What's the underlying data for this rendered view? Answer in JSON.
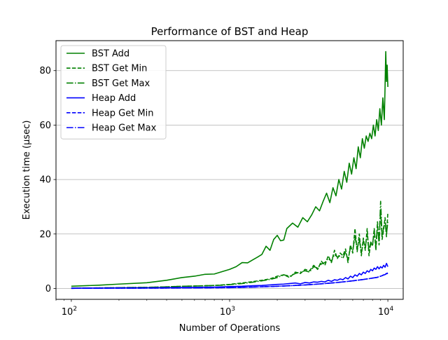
{
  "chart_data": {
    "type": "line",
    "title": "Performance of BST and Heap",
    "xlabel": "Number of Operations",
    "ylabel": "Execution time (μsec)",
    "xscale": "log",
    "xlim": [
      80,
      12500
    ],
    "ylim": [
      -4,
      91
    ],
    "xticks": [
      {
        "value": 100,
        "base": "10",
        "exp": "2"
      },
      {
        "value": 1000,
        "base": "10",
        "exp": "3"
      },
      {
        "value": 10000,
        "base": "10",
        "exp": "4"
      }
    ],
    "yticks": [
      {
        "value": 0,
        "label": "0"
      },
      {
        "value": 20,
        "label": "20"
      },
      {
        "value": 40,
        "label": "40"
      },
      {
        "value": 60,
        "label": "60"
      },
      {
        "value": 80,
        "label": "80"
      }
    ],
    "grid": "y-major",
    "legend_position": "upper-left",
    "series": [
      {
        "name": "BST Add",
        "color": "#008000",
        "dash": "solid",
        "x": [
          100,
          150,
          200,
          300,
          400,
          500,
          600,
          700,
          800,
          900,
          1000,
          1100,
          1200,
          1300,
          1400,
          1500,
          1600,
          1700,
          1800,
          1900,
          2000,
          2100,
          2200,
          2300,
          2500,
          2700,
          2900,
          3100,
          3300,
          3500,
          3700,
          3900,
          4100,
          4300,
          4500,
          4700,
          4900,
          5100,
          5300,
          5500,
          5700,
          5900,
          6100,
          6300,
          6500,
          6700,
          6900,
          7100,
          7300,
          7500,
          7700,
          7900,
          8100,
          8300,
          8500,
          8700,
          8900,
          9100,
          9300,
          9500,
          9600,
          9700,
          9800,
          9900,
          10000
        ],
        "y": [
          0.8,
          1.2,
          1.6,
          2.1,
          3.0,
          4.0,
          4.5,
          5.2,
          5.3,
          6.2,
          7.0,
          8.0,
          9.5,
          9.4,
          10.5,
          11.5,
          12.5,
          15.5,
          14.0,
          18.0,
          19.5,
          17.5,
          17.8,
          22.0,
          24.0,
          22.5,
          26.0,
          24.5,
          27.0,
          30.0,
          28.5,
          32.0,
          35.0,
          31.5,
          37.0,
          34.0,
          40.0,
          36.5,
          43.0,
          39.0,
          46.0,
          42.0,
          48.0,
          44.0,
          52.0,
          48.0,
          55.0,
          51.5,
          56.0,
          54.0,
          57.0,
          55.0,
          60.0,
          56.0,
          62.0,
          58.0,
          66.0,
          60.0,
          70.0,
          62.0,
          74.0,
          87.0,
          76.0,
          82.0,
          74.0
        ]
      },
      {
        "name": "BST Get Min",
        "color": "#008000",
        "dash": "dashed",
        "x": [
          100,
          150,
          200,
          300,
          400,
          500,
          600,
          700,
          800,
          900,
          1000,
          1200,
          1400,
          1600,
          1800,
          2000,
          2200,
          2400,
          2600,
          2800,
          3000,
          3200,
          3400,
          3600,
          3800,
          4000,
          4200,
          4400,
          4600,
          4800,
          5000,
          5200,
          5400,
          5600,
          5800,
          6000,
          6200,
          6400,
          6600,
          6800,
          7000,
          7200,
          7400,
          7600,
          7800,
          8000,
          8200,
          8400,
          8600,
          8800,
          9000,
          9200,
          9400,
          9600,
          9800,
          10000
        ],
        "y": [
          0.1,
          0.2,
          0.3,
          0.4,
          0.6,
          0.8,
          0.9,
          1.0,
          1.1,
          1.3,
          1.5,
          2.0,
          2.5,
          3.0,
          3.5,
          4.5,
          5.0,
          4.0,
          6.0,
          5.5,
          7.0,
          6.5,
          8.5,
          7.0,
          10.0,
          8.5,
          12.0,
          9.5,
          14.0,
          11.0,
          13.0,
          12.0,
          14.5,
          9.5,
          16.0,
          13.0,
          22.0,
          13.5,
          20.0,
          12.0,
          18.5,
          14.0,
          22.0,
          12.0,
          17.0,
          15.5,
          22.0,
          14.0,
          24.5,
          16.0,
          29.0,
          18.0,
          21.5,
          26.0,
          19.0,
          28.0
        ]
      },
      {
        "name": "BST Get Max",
        "color": "#008000",
        "dash": "dashdot",
        "x": [
          100,
          150,
          200,
          300,
          400,
          500,
          600,
          700,
          800,
          900,
          1000,
          1200,
          1400,
          1600,
          1800,
          2000,
          2200,
          2400,
          2600,
          2800,
          3000,
          3200,
          3400,
          3600,
          3800,
          4000,
          4200,
          4400,
          4600,
          4800,
          5000,
          5200,
          5400,
          5600,
          5800,
          6000,
          6200,
          6400,
          6600,
          6800,
          7000,
          7200,
          7400,
          7600,
          7800,
          8000,
          8200,
          8400,
          8600,
          8800,
          9000,
          9200,
          9400,
          9600,
          9800,
          10000
        ],
        "y": [
          0.1,
          0.2,
          0.3,
          0.4,
          0.6,
          0.8,
          0.9,
          1.0,
          1.1,
          1.2,
          1.4,
          1.8,
          2.3,
          2.8,
          3.3,
          4.0,
          5.0,
          4.5,
          5.5,
          6.0,
          6.5,
          6.0,
          8.0,
          7.5,
          9.0,
          9.5,
          11.0,
          10.0,
          12.5,
          11.5,
          12.0,
          11.0,
          13.5,
          10.5,
          15.0,
          14.0,
          19.0,
          14.5,
          18.0,
          13.0,
          17.5,
          15.0,
          20.0,
          14.0,
          17.0,
          16.0,
          21.0,
          15.5,
          23.0,
          17.0,
          32.0,
          19.0,
          22.5,
          24.0,
          20.0,
          24.5
        ]
      },
      {
        "name": "Heap Add",
        "color": "#0000ff",
        "dash": "solid",
        "x": [
          100,
          150,
          200,
          300,
          400,
          500,
          600,
          700,
          800,
          900,
          1000,
          1200,
          1400,
          1600,
          1800,
          2000,
          2200,
          2400,
          2600,
          2800,
          3000,
          3200,
          3400,
          3600,
          3800,
          4000,
          4200,
          4400,
          4600,
          4800,
          5000,
          5200,
          5400,
          5600,
          5800,
          6000,
          6200,
          6400,
          6600,
          6800,
          7000,
          7200,
          7400,
          7600,
          7800,
          8000,
          8200,
          8400,
          8600,
          8800,
          9000,
          9200,
          9400,
          9600,
          9800,
          10000
        ],
        "y": [
          0.1,
          0.15,
          0.2,
          0.25,
          0.3,
          0.35,
          0.4,
          0.45,
          0.5,
          0.6,
          0.7,
          0.8,
          1.0,
          1.1,
          1.3,
          1.5,
          1.6,
          1.8,
          2.0,
          1.7,
          2.2,
          2.0,
          2.4,
          2.3,
          2.6,
          2.4,
          3.0,
          2.6,
          3.2,
          3.0,
          3.5,
          3.2,
          4.0,
          3.5,
          4.5,
          4.0,
          5.0,
          4.5,
          5.5,
          5.0,
          6.0,
          5.5,
          6.5,
          6.0,
          7.0,
          6.5,
          7.5,
          7.0,
          8.0,
          7.2,
          8.0,
          7.5,
          8.5,
          7.8,
          9.2,
          8.0
        ]
      },
      {
        "name": "Heap Get Min",
        "color": "#0000ff",
        "dash": "dashed",
        "x": [
          100,
          150,
          200,
          300,
          400,
          500,
          600,
          700,
          800,
          900,
          1000,
          1200,
          1400,
          1600,
          1800,
          2000,
          2200,
          2400,
          2600,
          2800,
          3000,
          3200,
          3400,
          3600,
          3800,
          4000,
          4200,
          4400,
          4600,
          4800,
          5000,
          5200,
          5400,
          5600,
          5800,
          6000,
          6200,
          6400,
          6600,
          6800,
          7000,
          7200,
          7400,
          7600,
          7800,
          8000,
          8200,
          8400,
          8600,
          8800,
          9000,
          9200,
          9400,
          9600,
          9800,
          10000
        ],
        "y": [
          0.05,
          0.07,
          0.1,
          0.12,
          0.15,
          0.18,
          0.2,
          0.22,
          0.25,
          0.28,
          0.3,
          0.4,
          0.5,
          0.6,
          0.7,
          0.8,
          0.9,
          1.0,
          1.1,
          1.2,
          1.3,
          1.4,
          1.5,
          1.6,
          1.7,
          1.8,
          1.9,
          2.0,
          2.1,
          2.2,
          2.3,
          2.4,
          2.5,
          2.6,
          2.7,
          2.8,
          2.9,
          3.0,
          3.1,
          3.2,
          3.3,
          3.4,
          3.5,
          3.6,
          3.7,
          3.8,
          3.9,
          4.0,
          4.1,
          4.3,
          4.5,
          4.7,
          5.0,
          5.2,
          5.5,
          5.7
        ]
      },
      {
        "name": "Heap Get Max",
        "color": "#0000ff",
        "dash": "dashdot",
        "x": [
          100,
          150,
          200,
          300,
          400,
          500,
          600,
          700,
          800,
          900,
          1000,
          1200,
          1400,
          1600,
          1800,
          2000,
          2200,
          2400,
          2600,
          2800,
          3000,
          3200,
          3400,
          3600,
          3800,
          4000,
          4200,
          4400,
          4600,
          4800,
          5000,
          5200,
          5400,
          5600,
          5800,
          6000,
          6200,
          6400,
          6600,
          6800,
          7000,
          7200,
          7400,
          7600,
          7800,
          8000,
          8200,
          8400,
          8600,
          8800,
          9000,
          9200,
          9400,
          9600,
          9800,
          10000
        ],
        "y": [
          0.05,
          0.07,
          0.1,
          0.12,
          0.15,
          0.18,
          0.2,
          0.22,
          0.25,
          0.28,
          0.3,
          0.4,
          0.5,
          0.6,
          0.7,
          0.8,
          0.9,
          1.0,
          1.1,
          1.2,
          1.3,
          1.4,
          1.5,
          1.6,
          1.7,
          1.8,
          1.9,
          2.0,
          2.1,
          2.2,
          2.3,
          2.4,
          2.5,
          2.6,
          2.7,
          2.8,
          2.9,
          3.0,
          3.1,
          3.2,
          3.3,
          3.4,
          3.5,
          3.6,
          3.7,
          3.8,
          3.9,
          4.0,
          4.1,
          4.3,
          4.5,
          4.7,
          4.9,
          5.1,
          5.4,
          5.5
        ]
      }
    ]
  }
}
